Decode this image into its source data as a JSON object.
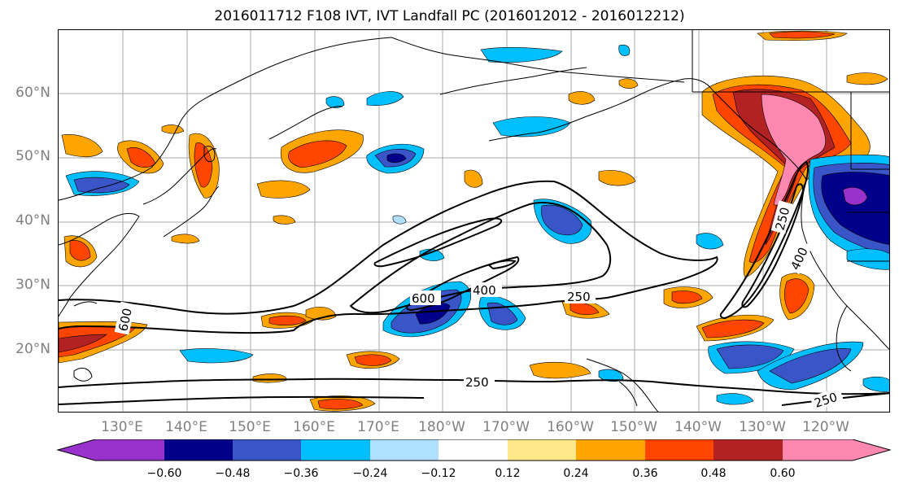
{
  "title": "2016011712 F108 IVT, IVT Landfall PC (2016012012 - 2016012212)",
  "lat_labels": [
    "60°N",
    "50°N",
    "40°N",
    "30°N",
    "20°N"
  ],
  "lon_labels": [
    "130°E",
    "140°E",
    "150°E",
    "160°E",
    "170°E",
    "180°W",
    "170°W",
    "160°W",
    "150°W",
    "140°W",
    "130°W",
    "120°W"
  ],
  "contour_levels": {
    "low": "250",
    "mid": "400",
    "high": "600"
  },
  "colorbar": {
    "ticks": [
      "−0.60",
      "−0.48",
      "−0.36",
      "−0.24",
      "−0.12",
      "0.12",
      "0.24",
      "0.36",
      "0.48",
      "0.60"
    ],
    "colors": [
      "#9932CC",
      "#00008B",
      "#3A55C8",
      "#00BFFF",
      "#B0E0FF",
      "#FFFFFF",
      "#FFE98A",
      "#FFA500",
      "#FF4500",
      "#B22222",
      "#FF88B0"
    ]
  }
}
